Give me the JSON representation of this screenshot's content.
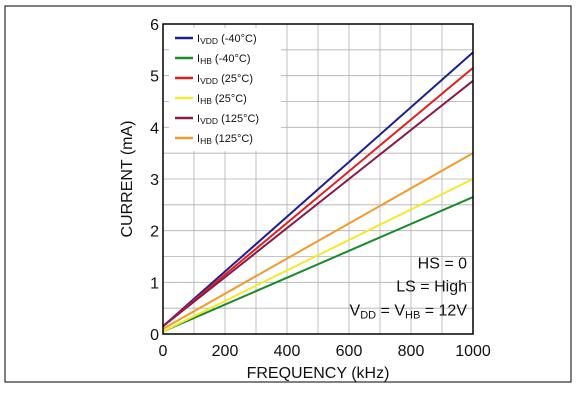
{
  "chart_data": {
    "type": "line",
    "title": "",
    "xlabel": "FREQUENCY (kHz)",
    "ylabel": "CURRENT (mA)",
    "xlim": [
      0,
      1000
    ],
    "ylim": [
      0,
      6
    ],
    "x_ticks": [
      "0",
      "200",
      "400",
      "600",
      "800",
      "1000"
    ],
    "y_ticks": [
      "0",
      "1",
      "2",
      "3",
      "4",
      "5",
      "6"
    ],
    "grid": true,
    "legend_position": "top-left",
    "series": [
      {
        "name_main": "I",
        "name_sub": "VDD",
        "name_rest": " (-40°C)",
        "color": "#1f1f8f",
        "x": [
          0,
          1000
        ],
        "y": [
          0.15,
          5.45
        ]
      },
      {
        "name_main": "I",
        "name_sub": "HB",
        "name_rest": " (-40°C)",
        "color": "#1a8a2a",
        "x": [
          0,
          1000
        ],
        "y": [
          0.05,
          2.65
        ]
      },
      {
        "name_main": "I",
        "name_sub": "VDD",
        "name_rest": " (25°C)",
        "color": "#e02020",
        "x": [
          0,
          1000
        ],
        "y": [
          0.15,
          5.15
        ]
      },
      {
        "name_main": "I",
        "name_sub": "HB",
        "name_rest": " (25°C)",
        "color": "#f2ea2a",
        "x": [
          0,
          1000
        ],
        "y": [
          0.05,
          3.0
        ]
      },
      {
        "name_main": "I",
        "name_sub": "VDD",
        "name_rest": " (125°C)",
        "color": "#8a1a4a",
        "x": [
          0,
          1000
        ],
        "y": [
          0.15,
          4.9
        ]
      },
      {
        "name_main": "I",
        "name_sub": "HB",
        "name_rest": " (125°C)",
        "color": "#f29a2a",
        "x": [
          0,
          1000
        ],
        "y": [
          0.1,
          3.5
        ]
      }
    ],
    "annotations": {
      "hs": "HS = 0",
      "ls": "LS = High",
      "vdd_a": "V",
      "vdd_a_sub": "DD",
      "vdd_b": " = V",
      "vdd_b_sub": "HB",
      "vdd_c": " = 12V"
    }
  }
}
